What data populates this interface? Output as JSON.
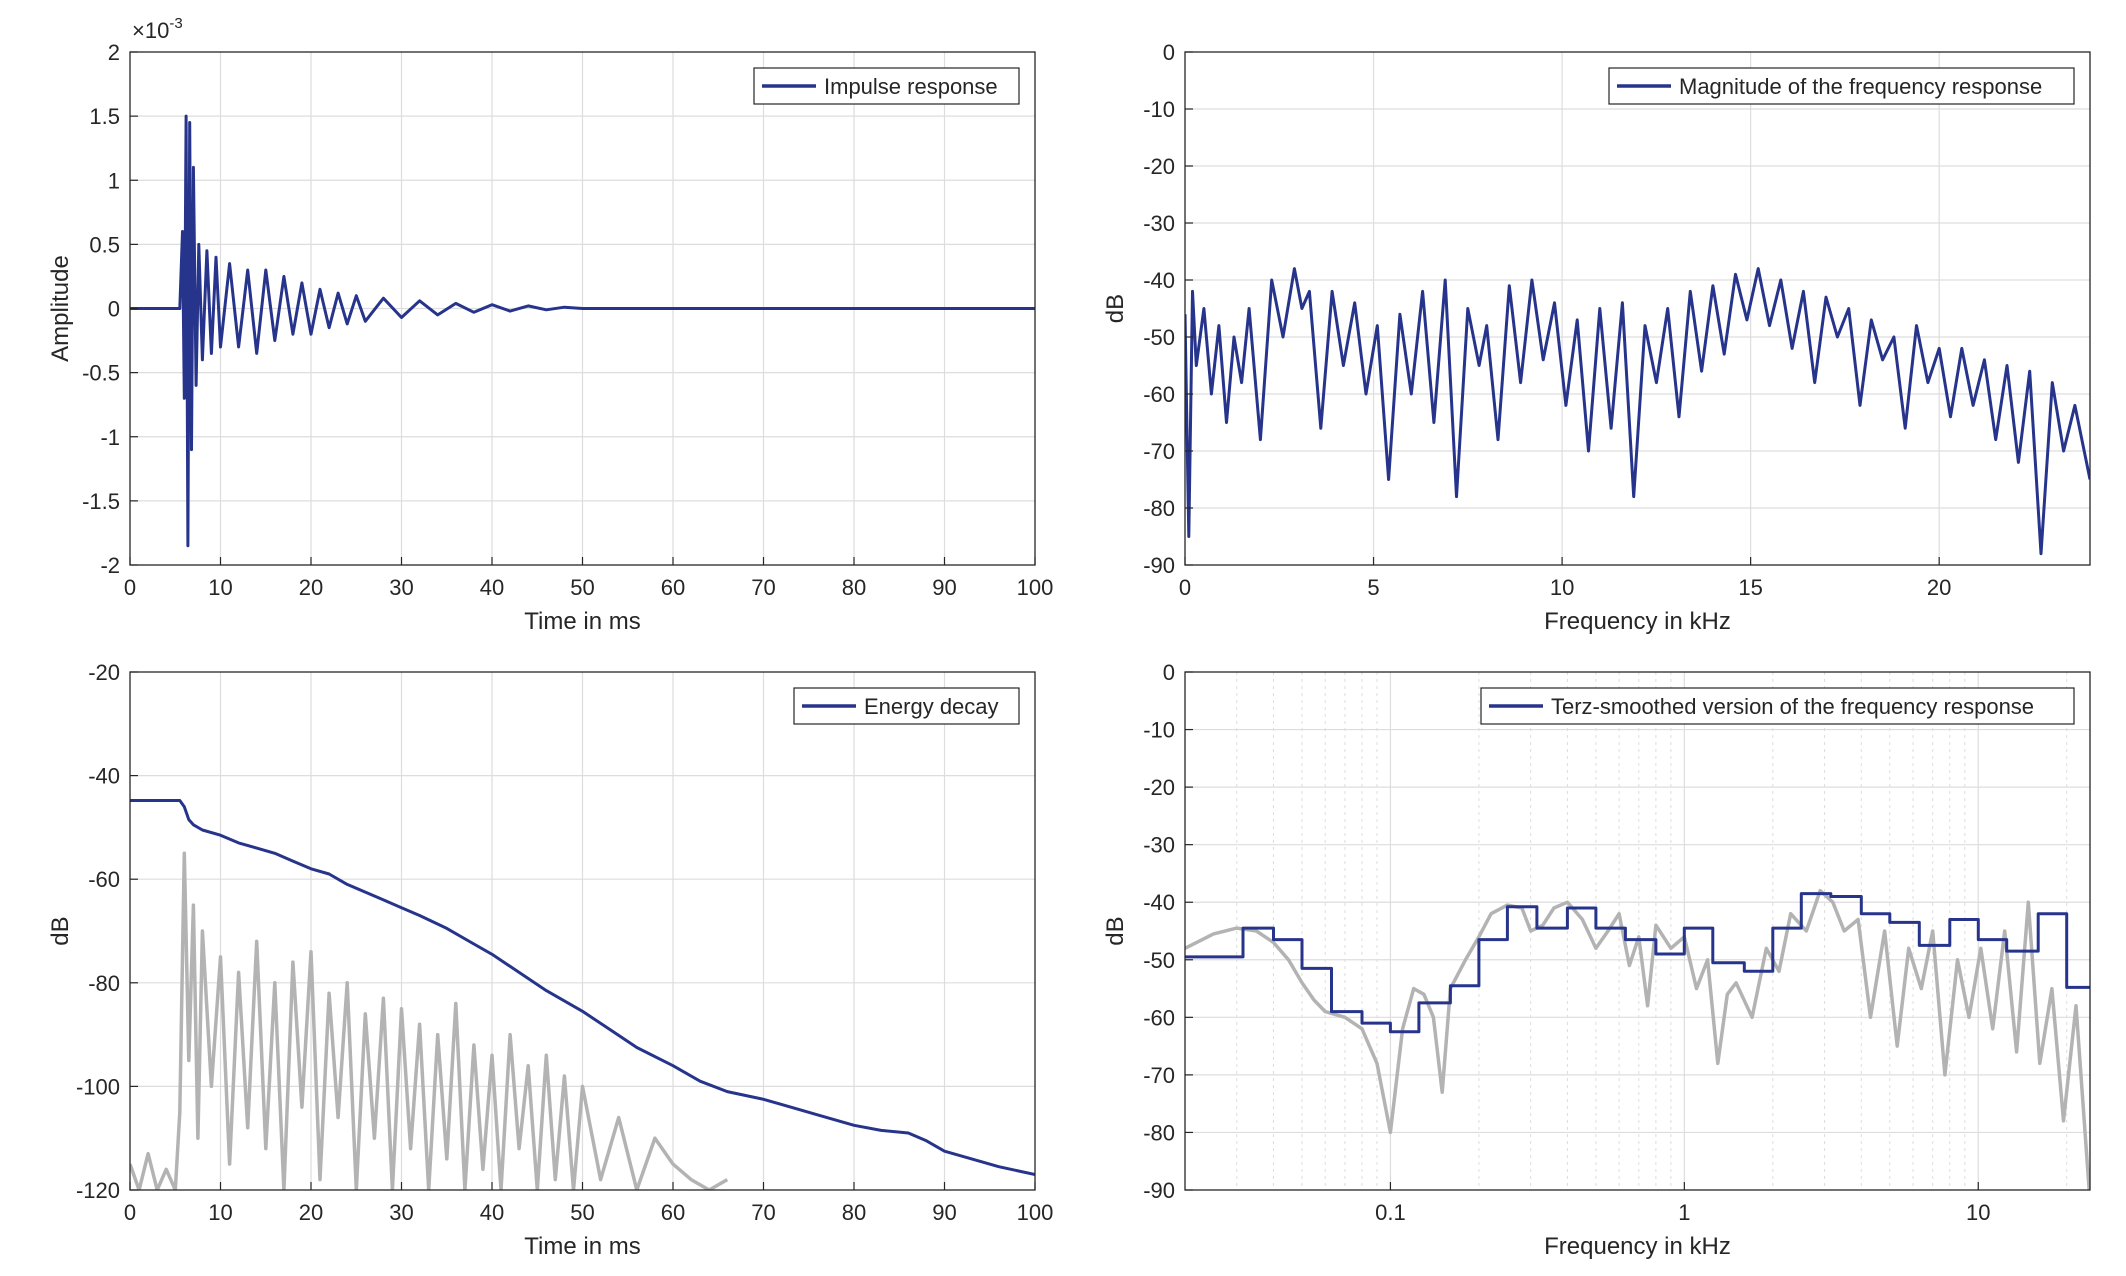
{
  "colors": {
    "series": "#27348b",
    "background_curve": "#b3b3b3",
    "grid": "#dddddd",
    "axis": "#262626"
  },
  "chart_data": [
    {
      "type": "line",
      "xlabel": "Time in ms",
      "ylabel": "Amplitude",
      "exponent_label": "×10",
      "exponent_power": "-3",
      "xlim": [
        0,
        100
      ],
      "ylim": [
        -2,
        2
      ],
      "xticks": [
        0,
        10,
        20,
        30,
        40,
        50,
        60,
        70,
        80,
        90,
        100
      ],
      "xtick_labels": [
        "0",
        "10",
        "20",
        "30",
        "40",
        "50",
        "60",
        "70",
        "80",
        "90",
        "100"
      ],
      "yticks": [
        2,
        1.5,
        1,
        0.5,
        0,
        -0.5,
        -1,
        -1.5,
        -2
      ],
      "ytick_labels": [
        "2",
        "1.5",
        "1",
        "0.5",
        "0",
        "-0.5",
        "-1",
        "-1.5",
        "-2"
      ],
      "grid": true,
      "legend_position": "top-right",
      "series": [
        {
          "name": "Impulse response",
          "color": "#27348b",
          "x": [
            0,
            5.5,
            5.8,
            6.0,
            6.2,
            6.4,
            6.6,
            6.8,
            7.0,
            7.3,
            7.6,
            8,
            8.5,
            9,
            9.5,
            10,
            11,
            12,
            13,
            14,
            15,
            16,
            17,
            18,
            19,
            20,
            21,
            22,
            23,
            24,
            25,
            26,
            28,
            30,
            32,
            34,
            36,
            38,
            40,
            42,
            44,
            46,
            48,
            50,
            60,
            70,
            80,
            90,
            100
          ],
          "y": [
            0,
            0,
            0.6,
            -0.7,
            1.5,
            -1.85,
            1.45,
            -1.1,
            1.1,
            -0.6,
            0.5,
            -0.4,
            0.45,
            -0.35,
            0.4,
            -0.3,
            0.35,
            -0.3,
            0.3,
            -0.35,
            0.3,
            -0.25,
            0.25,
            -0.2,
            0.2,
            -0.2,
            0.15,
            -0.15,
            0.12,
            -0.12,
            0.1,
            -0.1,
            0.08,
            -0.07,
            0.06,
            -0.05,
            0.04,
            -0.03,
            0.03,
            -0.02,
            0.02,
            -0.01,
            0.01,
            0,
            0,
            0,
            0,
            0,
            0
          ]
        }
      ]
    },
    {
      "type": "line",
      "xlabel": "Frequency in kHz",
      "ylabel": "dB",
      "xlim": [
        0,
        24
      ],
      "ylim": [
        -90,
        0
      ],
      "xticks": [
        0,
        5,
        10,
        15,
        20
      ],
      "xtick_labels": [
        "0",
        "5",
        "10",
        "15",
        "20"
      ],
      "yticks": [
        0,
        -10,
        -20,
        -30,
        -40,
        -50,
        -60,
        -70,
        -80,
        -90
      ],
      "ytick_labels": [
        "0",
        "-10",
        "-20",
        "-30",
        "-40",
        "-50",
        "-60",
        "-70",
        "-80",
        "-90"
      ],
      "grid": true,
      "legend_position": "top-right",
      "series": [
        {
          "name": "Magnitude of the frequency response",
          "color": "#27348b",
          "x": [
            0,
            0.1,
            0.2,
            0.3,
            0.5,
            0.7,
            0.9,
            1.1,
            1.3,
            1.5,
            1.7,
            2.0,
            2.3,
            2.6,
            2.9,
            3.1,
            3.3,
            3.6,
            3.9,
            4.2,
            4.5,
            4.8,
            5.1,
            5.4,
            5.7,
            6.0,
            6.3,
            6.6,
            6.9,
            7.2,
            7.5,
            7.8,
            8.0,
            8.3,
            8.6,
            8.9,
            9.2,
            9.5,
            9.8,
            10.1,
            10.4,
            10.7,
            11.0,
            11.3,
            11.6,
            11.9,
            12.2,
            12.5,
            12.8,
            13.1,
            13.4,
            13.7,
            14.0,
            14.3,
            14.6,
            14.9,
            15.2,
            15.5,
            15.8,
            16.1,
            16.4,
            16.7,
            17.0,
            17.3,
            17.6,
            17.9,
            18.2,
            18.5,
            18.8,
            19.1,
            19.4,
            19.7,
            20.0,
            20.3,
            20.6,
            20.9,
            21.2,
            21.5,
            21.8,
            22.1,
            22.4,
            22.7,
            23.0,
            23.3,
            23.6,
            24.0
          ],
          "y": [
            -46,
            -85,
            -42,
            -55,
            -45,
            -60,
            -48,
            -65,
            -50,
            -58,
            -45,
            -68,
            -40,
            -50,
            -38,
            -45,
            -42,
            -66,
            -42,
            -55,
            -44,
            -60,
            -48,
            -75,
            -46,
            -60,
            -42,
            -65,
            -40,
            -78,
            -45,
            -55,
            -48,
            -68,
            -41,
            -58,
            -40,
            -54,
            -44,
            -62,
            -47,
            -70,
            -45,
            -66,
            -44,
            -78,
            -48,
            -58,
            -45,
            -64,
            -42,
            -56,
            -41,
            -53,
            -39,
            -47,
            -38,
            -48,
            -40,
            -52,
            -42,
            -58,
            -43,
            -50,
            -45,
            -62,
            -47,
            -54,
            -50,
            -66,
            -48,
            -58,
            -52,
            -64,
            -52,
            -62,
            -54,
            -68,
            -55,
            -72,
            -56,
            -88,
            -58,
            -70,
            -62,
            -75
          ]
        }
      ]
    },
    {
      "type": "line",
      "xlabel": "Time in ms",
      "ylabel": "dB",
      "xlim": [
        0,
        100
      ],
      "ylim": [
        -120,
        -20
      ],
      "xticks": [
        0,
        10,
        20,
        30,
        40,
        50,
        60,
        70,
        80,
        90,
        100
      ],
      "xtick_labels": [
        "0",
        "10",
        "20",
        "30",
        "40",
        "50",
        "60",
        "70",
        "80",
        "90",
        "100"
      ],
      "yticks": [
        -20,
        -40,
        -60,
        -80,
        -100,
        -120
      ],
      "ytick_labels": [
        "-20",
        "-40",
        "-60",
        "-80",
        "-100",
        "-120"
      ],
      "grid": true,
      "legend_position": "top-right",
      "series": [
        {
          "name": "Energy decay",
          "color": "#27348b",
          "x": [
            0,
            5.5,
            6,
            6.5,
            7,
            8,
            10,
            12,
            14,
            16,
            18,
            20,
            22,
            24,
            26,
            28,
            30,
            32,
            35,
            38,
            40,
            43,
            46,
            50,
            53,
            56,
            60,
            63,
            66,
            70,
            73,
            76,
            80,
            83,
            86,
            88,
            90,
            93,
            96,
            100
          ],
          "y": [
            -44.8,
            -44.8,
            -46,
            -48.5,
            -49.5,
            -50.5,
            -51.5,
            -53,
            -54,
            -55,
            -56.5,
            -58,
            -59,
            -61,
            -62.5,
            -64,
            -65.5,
            -67,
            -69.5,
            -72.5,
            -74.5,
            -78,
            -81.5,
            -85.5,
            -89,
            -92.5,
            -96,
            -99,
            -101,
            -102.5,
            -104,
            -105.5,
            -107.5,
            -108.5,
            -109,
            -110.5,
            -112.5,
            -114,
            -115.5,
            -117
          ]
        },
        {
          "name": "",
          "color": "#b3b3b3",
          "x": [
            0,
            1,
            2,
            3,
            4,
            5,
            5.5,
            6,
            6.5,
            7,
            7.5,
            8,
            9,
            10,
            11,
            12,
            13,
            14,
            15,
            16,
            17,
            18,
            19,
            20,
            21,
            22,
            23,
            24,
            25,
            26,
            27,
            28,
            29,
            30,
            31,
            32,
            33,
            34,
            35,
            36,
            37,
            38,
            39,
            40,
            41,
            42,
            43,
            44,
            45,
            46,
            47,
            48,
            49,
            50,
            52,
            54,
            56,
            58,
            60,
            62,
            64,
            66
          ],
          "y": [
            -115,
            -120,
            -113,
            -120,
            -116,
            -120,
            -105,
            -55,
            -95,
            -65,
            -110,
            -70,
            -100,
            -75,
            -115,
            -78,
            -108,
            -72,
            -112,
            -80,
            -120,
            -76,
            -104,
            -74,
            -118,
            -82,
            -106,
            -80,
            -120,
            -86,
            -110,
            -83,
            -120,
            -85,
            -112,
            -88,
            -120,
            -90,
            -114,
            -84,
            -120,
            -92,
            -116,
            -94,
            -120,
            -90,
            -112,
            -96,
            -120,
            -94,
            -118,
            -98,
            -120,
            -100,
            -118,
            -106,
            -120,
            -110,
            -115,
            -118,
            -120,
            -118
          ]
        }
      ]
    },
    {
      "type": "line",
      "xlabel": "Frequency in kHz",
      "ylabel": "dB",
      "xscale": "log",
      "xlim": [
        0.02,
        24
      ],
      "ylim": [
        -90,
        0
      ],
      "xticks": [
        0.1,
        1,
        10
      ],
      "xtick_labels": [
        "0.1",
        "1",
        "10"
      ],
      "yticks": [
        0,
        -10,
        -20,
        -30,
        -40,
        -50,
        -60,
        -70,
        -80,
        -90
      ],
      "ytick_labels": [
        "0",
        "-10",
        "-20",
        "-30",
        "-40",
        "-50",
        "-60",
        "-70",
        "-80",
        "-90"
      ],
      "grid": true,
      "legend_position": "top-right",
      "series": [
        {
          "name": "Terz-smoothed version of the frequency response",
          "color": "#27348b",
          "x": [
            0.02,
            0.0315,
            0.0315,
            0.04,
            0.04,
            0.05,
            0.05,
            0.063,
            0.063,
            0.08,
            0.08,
            0.1,
            0.1,
            0.125,
            0.125,
            0.16,
            0.16,
            0.2,
            0.2,
            0.25,
            0.25,
            0.315,
            0.315,
            0.4,
            0.4,
            0.5,
            0.5,
            0.63,
            0.63,
            0.8,
            0.8,
            1.0,
            1.0,
            1.25,
            1.25,
            1.6,
            1.6,
            2.0,
            2.0,
            2.5,
            2.5,
            3.15,
            3.15,
            4.0,
            4.0,
            5.0,
            5.0,
            6.3,
            6.3,
            8.0,
            8.0,
            10.0,
            10.0,
            12.5,
            12.5,
            16,
            16,
            20,
            20,
            24
          ],
          "y": [
            -49.5,
            -49.5,
            -44.5,
            -44.5,
            -46.5,
            -46.5,
            -51.5,
            -51.5,
            -59,
            -59,
            -61,
            -61,
            -62.5,
            -62.5,
            -57.5,
            -57.5,
            -54.5,
            -54.5,
            -46.5,
            -46.5,
            -40.8,
            -40.8,
            -44.5,
            -44.5,
            -41,
            -41,
            -44.5,
            -44.5,
            -46.5,
            -46.5,
            -49,
            -49,
            -44.5,
            -44.5,
            -50.5,
            -50.5,
            -52,
            -52,
            -44.5,
            -44.5,
            -38.5,
            -38.5,
            -39,
            -39,
            -42,
            -42,
            -43.5,
            -43.5,
            -47.5,
            -47.5,
            -43,
            -43,
            -46.5,
            -46.5,
            -48.5,
            -48.5,
            -42,
            -42,
            -54.8,
            -54.8
          ]
        },
        {
          "name": "",
          "color": "#b3b3b3",
          "x": [
            0.02,
            0.025,
            0.03,
            0.035,
            0.04,
            0.045,
            0.05,
            0.055,
            0.06,
            0.07,
            0.08,
            0.09,
            0.1,
            0.11,
            0.12,
            0.13,
            0.14,
            0.15,
            0.16,
            0.18,
            0.2,
            0.22,
            0.25,
            0.28,
            0.3,
            0.33,
            0.36,
            0.4,
            0.45,
            0.5,
            0.55,
            0.6,
            0.65,
            0.7,
            0.75,
            0.8,
            0.9,
            1.0,
            1.1,
            1.2,
            1.3,
            1.4,
            1.5,
            1.7,
            1.9,
            2.1,
            2.3,
            2.6,
            2.9,
            3.2,
            3.5,
            3.9,
            4.3,
            4.8,
            5.3,
            5.8,
            6.4,
            7.0,
            7.7,
            8.5,
            9.3,
            10.2,
            11.2,
            12.3,
            13.5,
            14.8,
            16.2,
            17.8,
            19.5,
            21.5,
            24
          ],
          "y": [
            -48,
            -45.5,
            -44.5,
            -45,
            -47,
            -50,
            -54,
            -57,
            -59,
            -60,
            -62,
            -68,
            -80,
            -62,
            -55,
            -56,
            -60,
            -73,
            -55,
            -50,
            -46,
            -42,
            -40.5,
            -41,
            -45,
            -44,
            -41,
            -40,
            -43,
            -48,
            -45,
            -42,
            -51,
            -46,
            -58,
            -44,
            -48,
            -46,
            -55,
            -50,
            -68,
            -56,
            -54,
            -60,
            -48,
            -52,
            -42,
            -45,
            -38,
            -40,
            -45,
            -43,
            -60,
            -45,
            -65,
            -48,
            -55,
            -45,
            -70,
            -50,
            -60,
            -48,
            -62,
            -45,
            -66,
            -40,
            -68,
            -55,
            -78,
            -58,
            -92
          ]
        }
      ]
    }
  ]
}
